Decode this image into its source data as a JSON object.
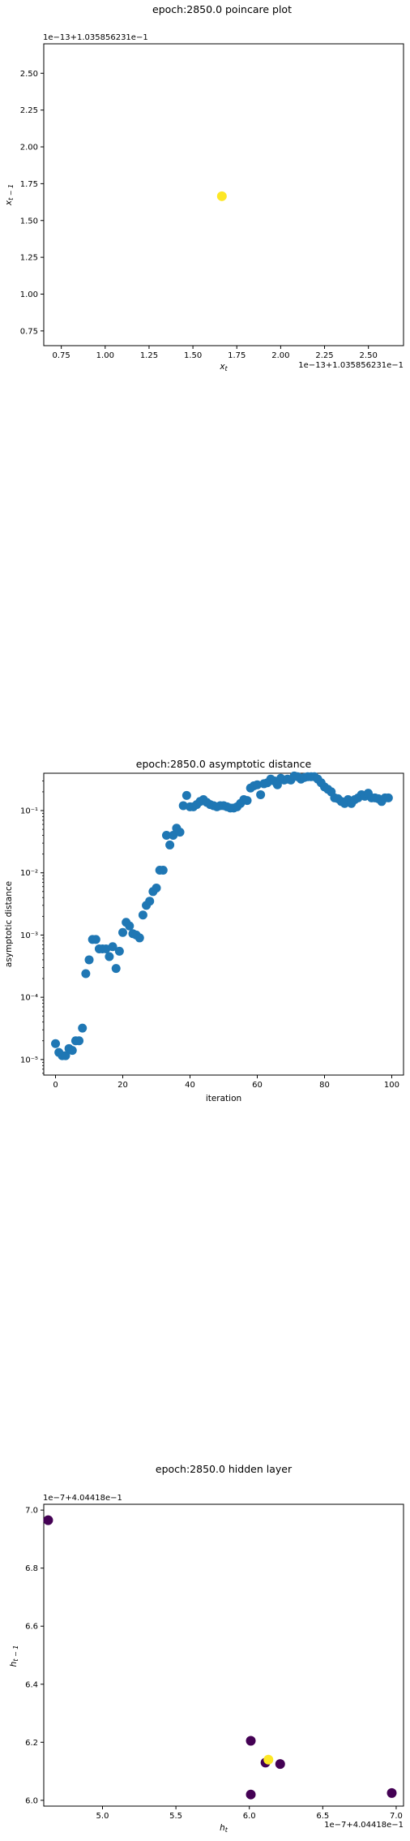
{
  "chart_data": [
    {
      "type": "scatter",
      "title": "epoch:2850.0 poincare plot",
      "xlabel": "x_t",
      "ylabel": "x_{t-1}",
      "x_offset_label": "1e−13+1.035856231e−1",
      "y_offset_label": "1e−13+1.035856231e−1",
      "xlim": [
        0.65,
        2.7
      ],
      "ylim": [
        0.65,
        2.7
      ],
      "x_ticks": [
        "0.75",
        "1.00",
        "1.25",
        "1.50",
        "1.75",
        "2.00",
        "2.25",
        "2.50"
      ],
      "y_ticks": [
        "0.75",
        "1.00",
        "1.25",
        "1.50",
        "1.75",
        "2.00",
        "2.25",
        "2.50"
      ],
      "x_tick_values": [
        0.75,
        1.0,
        1.25,
        1.5,
        1.75,
        2.0,
        2.25,
        2.5
      ],
      "y_tick_values": [
        0.75,
        1.0,
        1.25,
        1.5,
        1.75,
        2.0,
        2.25,
        2.5
      ],
      "points": [
        {
          "x": 1.665,
          "y": 1.665,
          "color": "#fde725"
        }
      ]
    },
    {
      "type": "scatter",
      "title": "epoch:2850.0 asymptotic distance",
      "xlabel": "iteration",
      "ylabel": "asymptotic distance",
      "yscale": "log",
      "xlim": [
        -3.5,
        103.5
      ],
      "ylim_log10": [
        -5.25,
        -0.4
      ],
      "x_ticks": [
        "0",
        "20",
        "40",
        "60",
        "80",
        "100"
      ],
      "x_tick_values": [
        0,
        20,
        40,
        60,
        80,
        100
      ],
      "y_ticks": [
        "10⁻⁵",
        "10⁻⁴",
        "10⁻³",
        "10⁻²",
        "10⁻¹"
      ],
      "y_tick_exponents": [
        -5,
        -4,
        -3,
        -2,
        -1
      ],
      "color": "#1f77b4",
      "x": [
        0,
        1,
        2,
        3,
        4,
        5,
        6,
        7,
        8,
        9,
        10,
        11,
        12,
        13,
        14,
        15,
        16,
        17,
        18,
        19,
        20,
        21,
        22,
        23,
        24,
        25,
        26,
        27,
        28,
        29,
        30,
        31,
        32,
        33,
        34,
        35,
        36,
        37,
        38,
        39,
        40,
        41,
        42,
        43,
        44,
        45,
        46,
        47,
        48,
        49,
        50,
        51,
        52,
        53,
        54,
        55,
        56,
        57,
        58,
        59,
        60,
        61,
        62,
        63,
        64,
        65,
        66,
        67,
        68,
        69,
        70,
        71,
        72,
        73,
        74,
        75,
        76,
        77,
        78,
        79,
        80,
        81,
        82,
        83,
        84,
        85,
        86,
        87,
        88,
        89,
        90,
        91,
        92,
        93,
        94,
        95,
        96,
        97,
        98,
        99
      ],
      "y": [
        1.8e-05,
        1.3e-05,
        1.15e-05,
        1.15e-05,
        1.5e-05,
        1.4e-05,
        2e-05,
        2e-05,
        3.2e-05,
        0.00024,
        0.0004,
        0.00085,
        0.00085,
        0.0006,
        0.0006,
        0.0006,
        0.00045,
        0.00065,
        0.00029,
        0.00055,
        0.0011,
        0.0016,
        0.0014,
        0.00105,
        0.001,
        0.0009,
        0.0021,
        0.003,
        0.0035,
        0.005,
        0.0057,
        0.011,
        0.011,
        0.04,
        0.028,
        0.04,
        0.052,
        0.045,
        0.12,
        0.175,
        0.115,
        0.115,
        0.125,
        0.14,
        0.15,
        0.135,
        0.125,
        0.12,
        0.115,
        0.12,
        0.12,
        0.115,
        0.11,
        0.11,
        0.115,
        0.13,
        0.15,
        0.145,
        0.23,
        0.25,
        0.26,
        0.18,
        0.27,
        0.28,
        0.32,
        0.3,
        0.26,
        0.33,
        0.31,
        0.32,
        0.31,
        0.36,
        0.35,
        0.32,
        0.34,
        0.35,
        0.35,
        0.35,
        0.32,
        0.28,
        0.24,
        0.22,
        0.2,
        0.16,
        0.155,
        0.14,
        0.13,
        0.15,
        0.13,
        0.15,
        0.16,
        0.18,
        0.17,
        0.19,
        0.16,
        0.16,
        0.155,
        0.14,
        0.16,
        0.16
      ]
    },
    {
      "type": "scatter",
      "title": "epoch:2850.0 hidden layer",
      "xlabel": "h_t",
      "ylabel": "h_{t-1}",
      "x_offset_label": "1e−7+4.04418e−1",
      "y_offset_label": "1e−7+4.04418e−1",
      "xlim": [
        4.6,
        7.05
      ],
      "ylim": [
        5.98,
        7.02
      ],
      "x_ticks": [
        "5.0",
        "5.5",
        "6.0",
        "6.5",
        "7.0"
      ],
      "x_tick_values": [
        5.0,
        5.5,
        6.0,
        6.5,
        7.0
      ],
      "y_ticks": [
        "6.0",
        "6.2",
        "6.4",
        "6.6",
        "6.8",
        "7.0"
      ],
      "y_tick_values": [
        6.0,
        6.2,
        6.4,
        6.6,
        6.8,
        7.0
      ],
      "points": [
        {
          "x": 4.63,
          "y": 6.965,
          "color": "#440154"
        },
        {
          "x": 6.01,
          "y": 6.205,
          "color": "#440154"
        },
        {
          "x": 6.01,
          "y": 6.02,
          "color": "#440154"
        },
        {
          "x": 6.11,
          "y": 6.13,
          "color": "#440154"
        },
        {
          "x": 6.21,
          "y": 6.125,
          "color": "#440154"
        },
        {
          "x": 6.97,
          "y": 6.025,
          "color": "#440154"
        },
        {
          "x": 6.13,
          "y": 6.14,
          "color": "#fde725"
        }
      ]
    }
  ]
}
